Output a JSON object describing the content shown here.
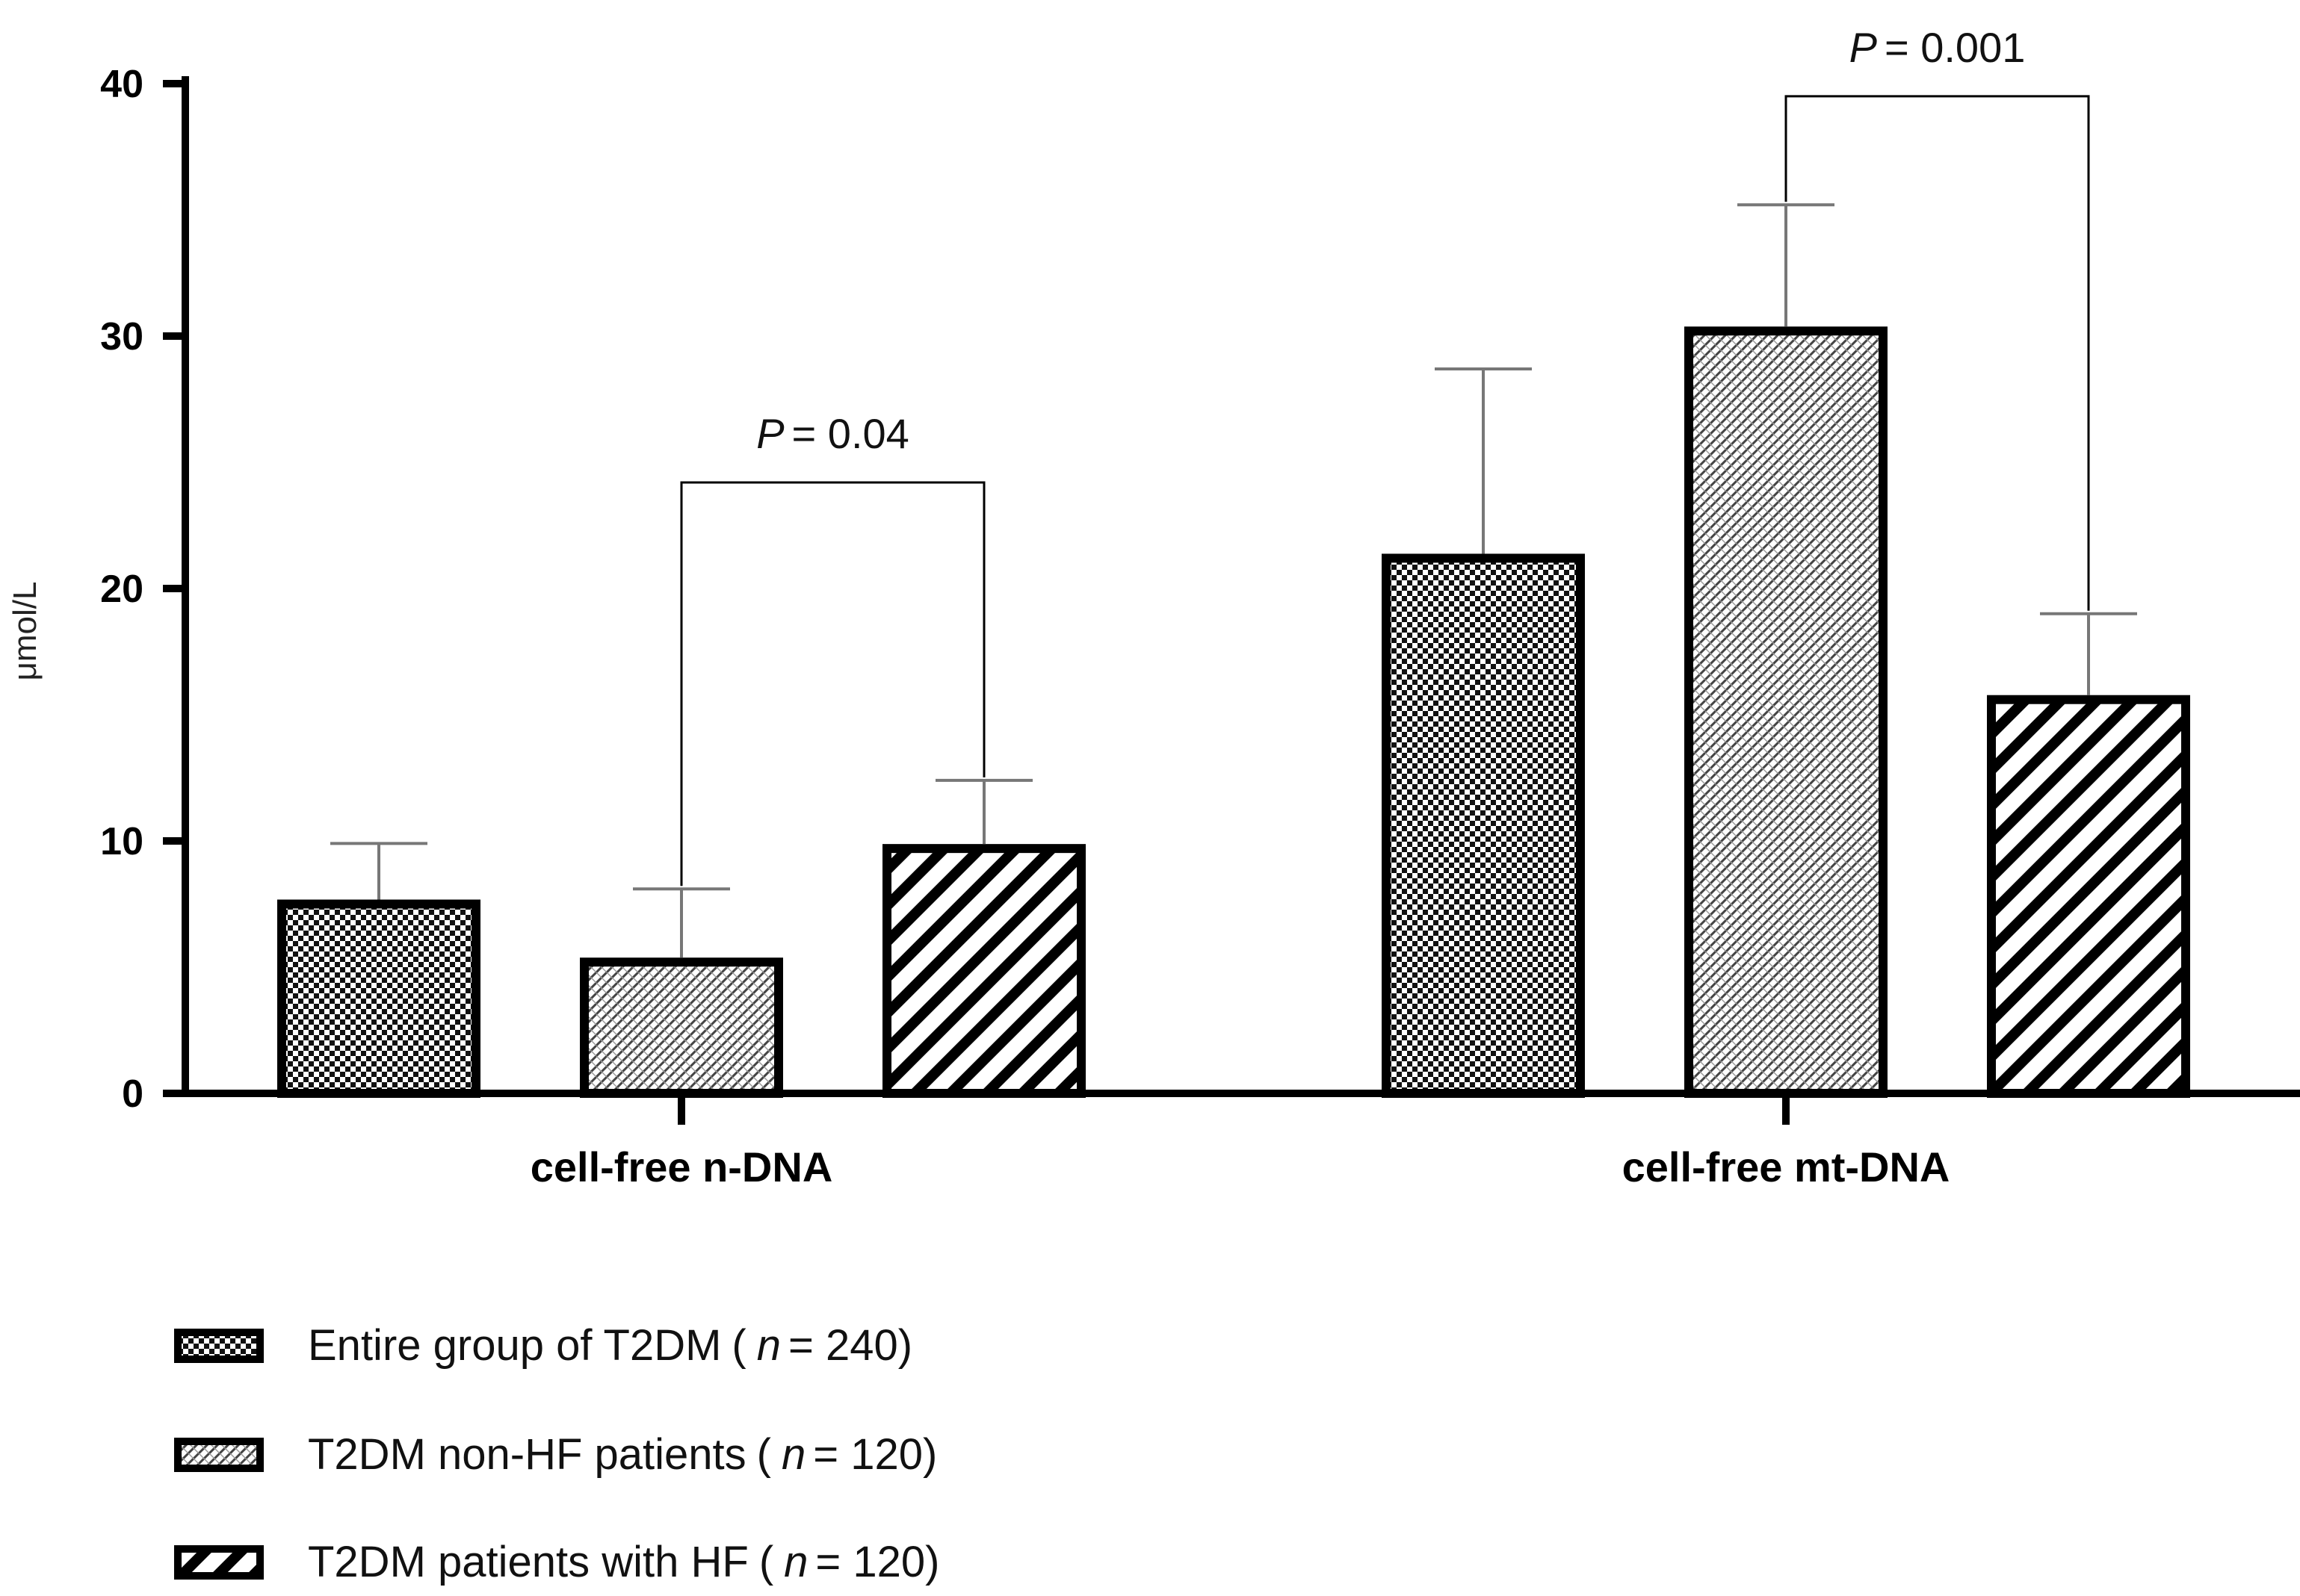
{
  "chart_data": {
    "type": "bar",
    "ylabel": "μmol/L",
    "xlabel": "",
    "ylim": [
      0,
      40
    ],
    "yticks": [
      "0",
      "10",
      "20",
      "30",
      "40"
    ],
    "categories": [
      "cell-free n-DNA",
      "cell-free mt-DNA"
    ],
    "series": [
      {
        "name": "Entire group of T2DM",
        "n_label": "n",
        "n_value": "= 240)",
        "values": [
          7.5,
          21.2
        ],
        "errors": [
          2.4,
          7.5
        ],
        "pattern": "checker"
      },
      {
        "name": "T2DM non-HF patients",
        "n_label": "n",
        "n_value": "= 120)",
        "values": [
          5.2,
          30.2
        ],
        "errors": [
          2.9,
          5.0
        ],
        "pattern": "crosshatch"
      },
      {
        "name": "T2DM patients with HF",
        "n_label": "n",
        "n_value": "= 120)",
        "values": [
          9.7,
          15.6
        ],
        "errors": [
          2.7,
          3.4
        ],
        "pattern": "diagonal"
      }
    ],
    "legend_open": "(",
    "legend_position": "bottom-left",
    "annotations": [
      {
        "p_symbol": "P",
        "p_text": "= 0.04",
        "category": 0,
        "from_series": 1,
        "to_series": 2,
        "bracket_y": 24.2
      },
      {
        "p_symbol": "P",
        "p_text": "= 0.001",
        "category": 1,
        "from_series": 1,
        "to_series": 2,
        "bracket_y": 39.5
      }
    ]
  }
}
